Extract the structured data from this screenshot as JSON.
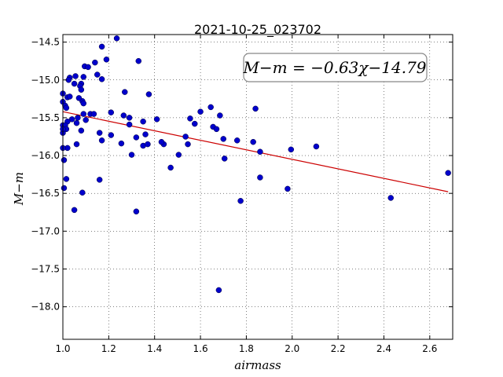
{
  "chart_data": {
    "type": "scatter",
    "title": "2021-10-25_023702",
    "xlabel": "airmass",
    "ylabel": "M−m",
    "xlim": [
      1.0,
      2.7
    ],
    "ylim": [
      -18.43,
      -14.4
    ],
    "y_inverted": true,
    "grid": true,
    "x_ticks": [
      1.0,
      1.2,
      1.4,
      1.6,
      1.8,
      2.0,
      2.2,
      2.4,
      2.6
    ],
    "x_tick_labels": [
      "1.0",
      "1.2",
      "1.4",
      "1.6",
      "1.8",
      "2.0",
      "2.2",
      "2.4",
      "2.6"
    ],
    "y_ticks": [
      -14.5,
      -15.0,
      -15.5,
      -16.0,
      -16.5,
      -17.0,
      -17.5,
      -18.0
    ],
    "y_tick_labels": [
      "−14.5",
      "−15.0",
      "−15.5",
      "−16.0",
      "−16.5",
      "−17.0",
      "−17.5",
      "−18.0"
    ],
    "annotation": "M−m = −0.63χ−14.79",
    "fit": {
      "slope": -0.63,
      "intercept": -14.79,
      "x_range": [
        1.0,
        2.68
      ],
      "color": "#cc0000"
    },
    "point_color": "#0000cc",
    "x": [
      1.235,
      1.17,
      1.19,
      1.33,
      1.14,
      1.055,
      1.03,
      1.025,
      1.09,
      1.08,
      1.15,
      1.095,
      1.11,
      1.17,
      1.05,
      1.075,
      1.08,
      1.0,
      1.02,
      1.27,
      1.375,
      1.085,
      1.09,
      1.0,
      1.01,
      1.015,
      1.07,
      1.03,
      1.09,
      1.12,
      1.04,
      1.02,
      1.1,
      1.135,
      1.21,
      1.265,
      1.29,
      1.35,
      1.41,
      1.555,
      1.6,
      1.645,
      1.685,
      1.84,
      1.0,
      1.01,
      1.015,
      1.06,
      1.065,
      1.16,
      1.08,
      1.21,
      1.29,
      1.36,
      1.32,
      1.35,
      1.37,
      1.44,
      1.43,
      1.545,
      1.575,
      1.655,
      1.67,
      1.7,
      1.76,
      1.83,
      1.86,
      1.995,
      2.105,
      1.17,
      1.255,
      1.06,
      1.02,
      1.0,
      1.0,
      1.0,
      1.005,
      1.005,
      1.015,
      1.16,
      1.3,
      1.47,
      1.505,
      1.535,
      1.705,
      1.86,
      1.98,
      1.775,
      2.43,
      2.68,
      1.085,
      1.05,
      1.32,
      1.68
    ],
    "y": [
      -14.45,
      -14.56,
      -14.73,
      -14.75,
      -14.77,
      -14.95,
      -14.97,
      -15.0,
      -14.96,
      -15.05,
      -14.93,
      -14.82,
      -14.83,
      -14.99,
      -15.05,
      -15.08,
      -15.13,
      -15.18,
      -15.23,
      -15.16,
      -15.19,
      -15.28,
      -15.31,
      -15.29,
      -15.34,
      -15.37,
      -15.24,
      -15.22,
      -15.45,
      -15.45,
      -15.52,
      -15.55,
      -15.53,
      -15.45,
      -15.43,
      -15.47,
      -15.5,
      -15.55,
      -15.52,
      -15.51,
      -15.42,
      -15.36,
      -15.47,
      -15.38,
      -15.6,
      -15.6,
      -15.65,
      -15.57,
      -15.5,
      -15.7,
      -15.67,
      -15.73,
      -15.59,
      -15.72,
      -15.76,
      -15.87,
      -15.85,
      -15.85,
      -15.82,
      -15.85,
      -15.58,
      -15.62,
      -15.65,
      -15.78,
      -15.8,
      -15.82,
      -15.95,
      -15.92,
      -15.88,
      -15.8,
      -15.84,
      -15.85,
      -15.9,
      -15.9,
      -15.7,
      -15.65,
      -16.06,
      -16.43,
      -16.31,
      -16.32,
      -15.99,
      -16.16,
      -15.99,
      -15.75,
      -16.04,
      -16.29,
      -16.44,
      -16.6,
      -16.56,
      -16.23,
      -16.49,
      -16.72,
      -16.74,
      -17.78
    ]
  }
}
